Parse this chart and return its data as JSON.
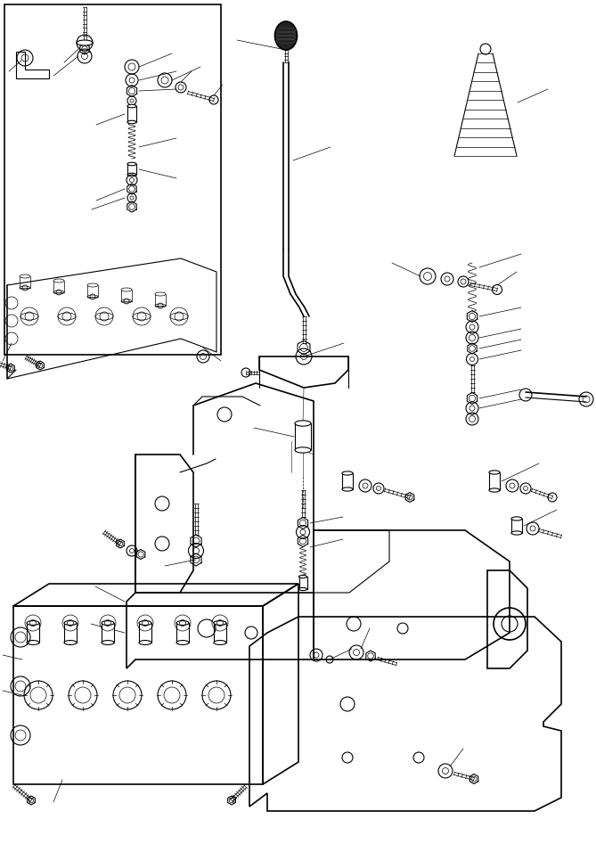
{
  "bg_color": "#ffffff",
  "line_color": "#000000",
  "fig_width": 6.69,
  "fig_height": 9.56,
  "dpi": 100
}
